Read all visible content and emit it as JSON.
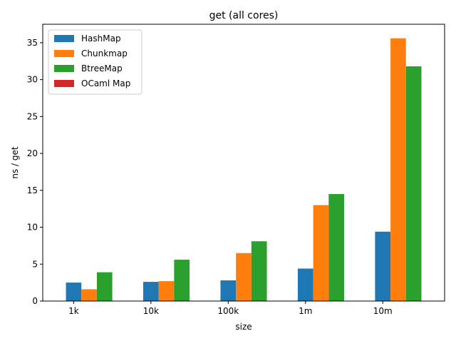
{
  "chart_data": {
    "type": "bar",
    "title": "get (all cores)",
    "xlabel": "size",
    "ylabel": "ns / get",
    "categories": [
      "1k",
      "10k",
      "100k",
      "1m",
      "10m"
    ],
    "ylim": [
      0,
      37.5
    ],
    "yticks": [
      0,
      5,
      10,
      15,
      20,
      25,
      30,
      35
    ],
    "grid": false,
    "legend_position": "top-left",
    "series": [
      {
        "name": "HashMap",
        "color": "#1f77b4",
        "values": [
          2.5,
          2.6,
          2.8,
          4.4,
          9.4
        ]
      },
      {
        "name": "Chunkmap",
        "color": "#ff7f0e",
        "values": [
          1.6,
          2.7,
          6.5,
          13.0,
          35.6
        ]
      },
      {
        "name": "BtreeMap",
        "color": "#2ca02c",
        "values": [
          3.9,
          5.6,
          8.1,
          14.5,
          31.8
        ]
      },
      {
        "name": "OCaml Map",
        "color": "#d62728",
        "values": [
          0,
          0,
          0,
          0,
          0
        ]
      }
    ]
  }
}
